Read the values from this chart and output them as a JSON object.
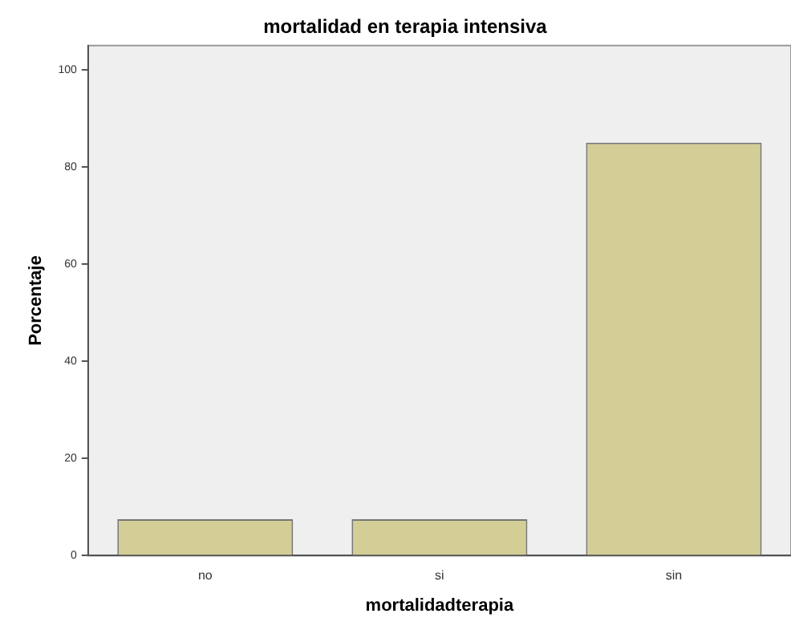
{
  "chart_data": {
    "type": "bar",
    "title": "mortalidad en terapia intensiva",
    "xlabel": "mortalidadterapia",
    "ylabel": "Porcentaje",
    "categories": [
      "no",
      "si",
      "sin"
    ],
    "values": [
      7.5,
      7.5,
      85
    ],
    "color": "#d3ce96",
    "ylim": [
      0,
      105
    ],
    "yticks": [
      0,
      20,
      40,
      60,
      80,
      100
    ],
    "grid": false,
    "legend": false
  }
}
